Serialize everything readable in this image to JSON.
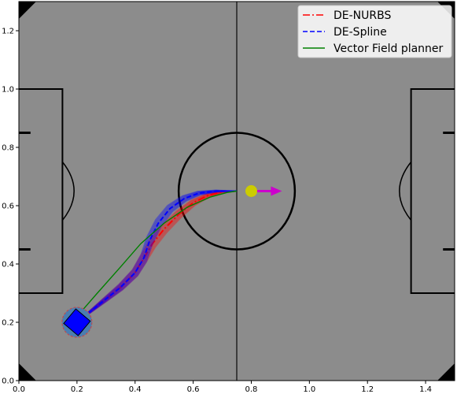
{
  "chart_data": {
    "type": "line",
    "title": "",
    "xlabel": "",
    "ylabel": "",
    "xlim": [
      0.0,
      1.5
    ],
    "ylim": [
      0.0,
      1.3
    ],
    "xticks": [
      0.0,
      0.2,
      0.4,
      0.6,
      0.8,
      1.0,
      1.2,
      1.4
    ],
    "yticks": [
      0.0,
      0.2,
      0.4,
      0.6,
      0.8,
      1.0,
      1.2
    ],
    "xtick_labels": [
      "0.0",
      "0.2",
      "0.4",
      "0.6",
      "0.8",
      "1.0",
      "1.2",
      "1.4"
    ],
    "ytick_labels": [
      "0.0",
      "0.2",
      "0.4",
      "0.6",
      "0.8",
      "1.0",
      "1.2"
    ],
    "legend_position": "top-right",
    "background": "soccer field",
    "field_color": "#8c8c8c",
    "series": [
      {
        "name": "DE-NURBS",
        "color": "#ff0000",
        "style": "dash-dot",
        "x": [
          0.2,
          0.25,
          0.3,
          0.35,
          0.4,
          0.43,
          0.46,
          0.5,
          0.55,
          0.6,
          0.65,
          0.7,
          0.75
        ],
        "y": [
          0.2,
          0.24,
          0.28,
          0.32,
          0.37,
          0.42,
          0.47,
          0.52,
          0.57,
          0.61,
          0.635,
          0.648,
          0.65
        ]
      },
      {
        "name": "DE-Spline",
        "color": "#0000ff",
        "style": "dashed",
        "x": [
          0.2,
          0.25,
          0.3,
          0.35,
          0.4,
          0.43,
          0.45,
          0.48,
          0.52,
          0.57,
          0.62,
          0.68,
          0.75
        ],
        "y": [
          0.2,
          0.24,
          0.28,
          0.32,
          0.37,
          0.42,
          0.48,
          0.54,
          0.59,
          0.625,
          0.643,
          0.65,
          0.65
        ]
      },
      {
        "name": "Vector Field planner",
        "color": "#008000",
        "style": "solid",
        "x": [
          0.2,
          0.27,
          0.35,
          0.42,
          0.5,
          0.58,
          0.66,
          0.72,
          0.75
        ],
        "y": [
          0.22,
          0.3,
          0.39,
          0.47,
          0.54,
          0.595,
          0.63,
          0.646,
          0.65
        ]
      }
    ],
    "ball": {
      "x": 0.8,
      "y": 0.65,
      "color": "#cccc00"
    },
    "target_arrow": {
      "x_start": 0.8,
      "x_end": 0.9,
      "y": 0.65,
      "color": "#cc00cc"
    },
    "robot": {
      "x": 0.2,
      "y": 0.2,
      "color": "#0000ff"
    }
  }
}
